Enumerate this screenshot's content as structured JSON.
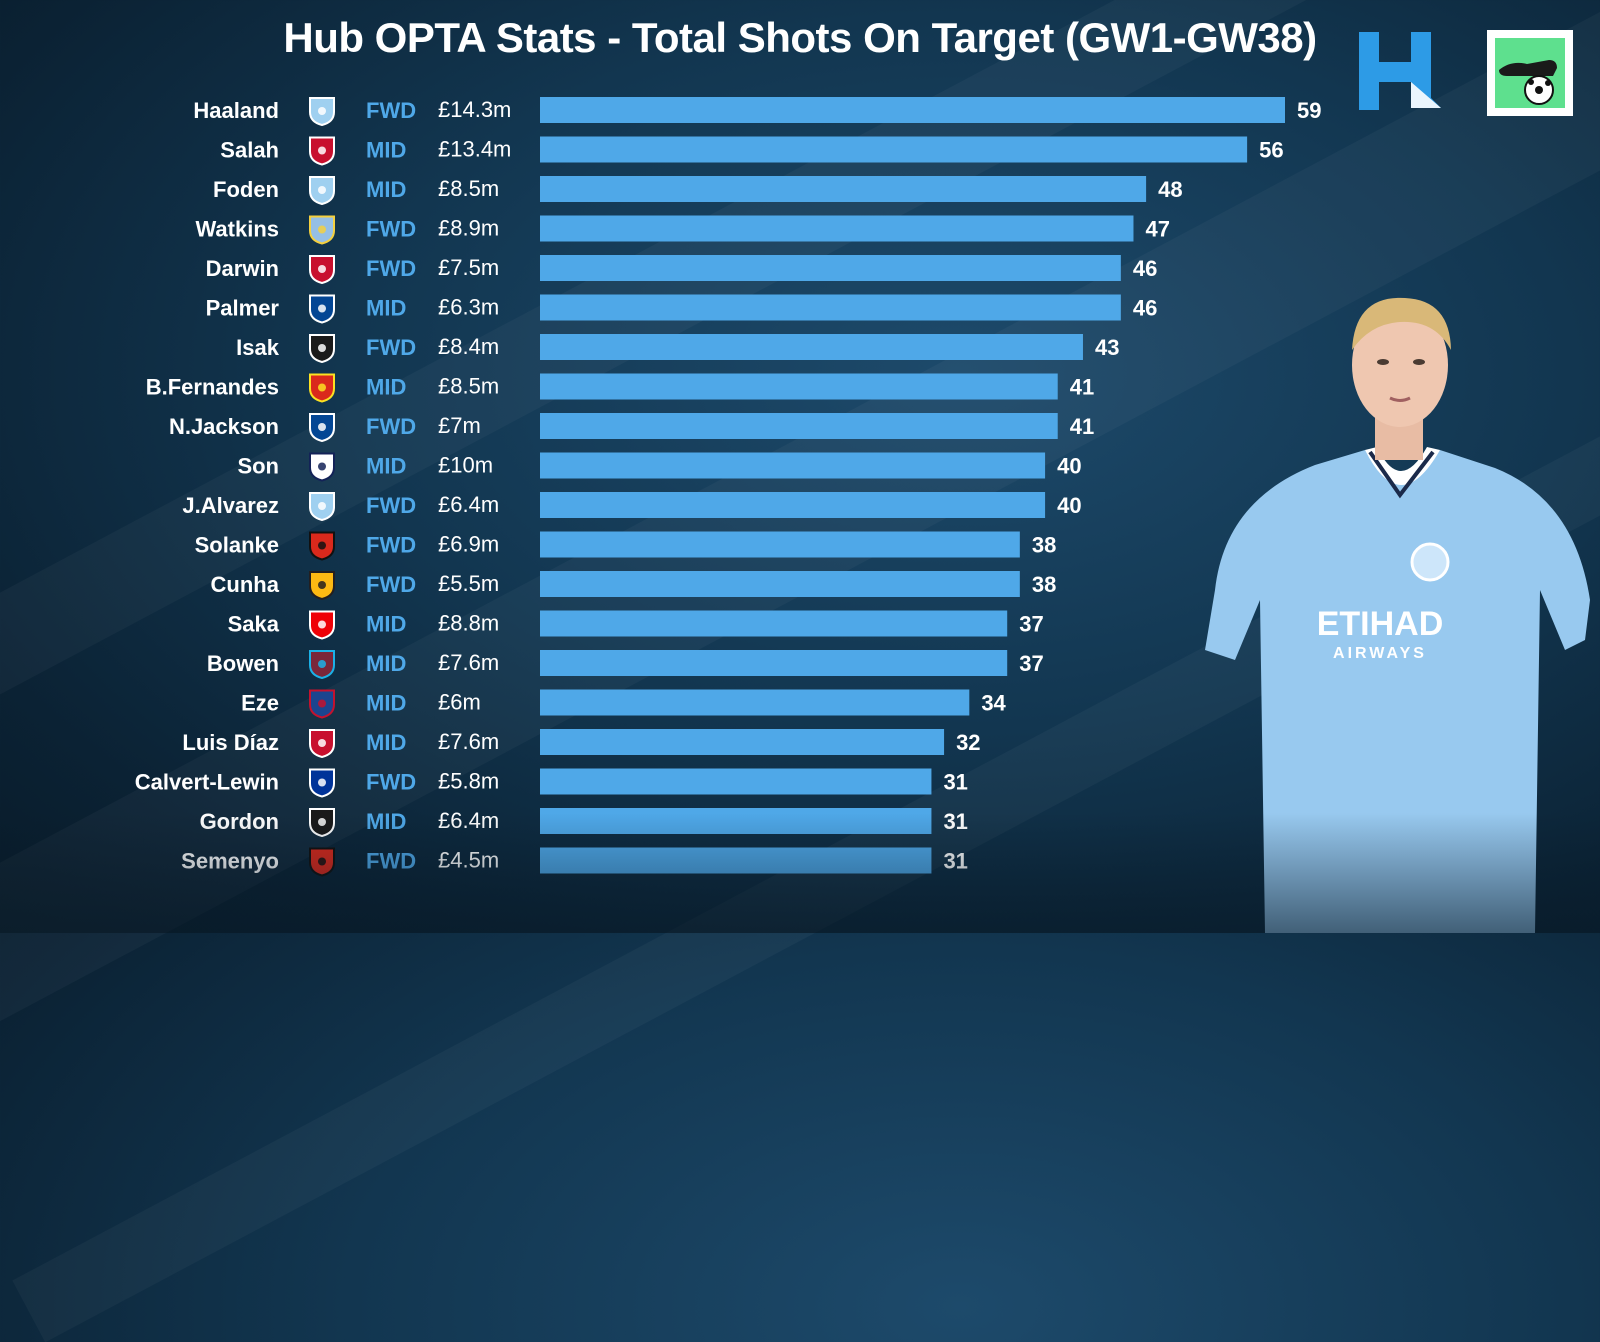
{
  "title": "Hub OPTA Stats - Total Shots On Target (GW1-GW38)",
  "brand": {
    "accent": "#4fa8e8",
    "bar": "#4fa8e8",
    "position_color": "#4fa8e8"
  },
  "player_image": {
    "icon": "player-photo-haaland",
    "shirt_text": "ETIHAD",
    "shirt_subtext": "AIRWAYS"
  },
  "chart_data": {
    "type": "bar",
    "orientation": "horizontal",
    "title": "Hub OPTA Stats - Total Shots On Target (GW1-GW38)",
    "xlim": [
      0,
      59
    ],
    "rows": [
      {
        "name": "Haaland",
        "club": "man-city",
        "position": "FWD",
        "price": "£14.3m",
        "value": 59
      },
      {
        "name": "Salah",
        "club": "liverpool",
        "position": "MID",
        "price": "£13.4m",
        "value": 56
      },
      {
        "name": "Foden",
        "club": "man-city",
        "position": "MID",
        "price": "£8.5m",
        "value": 48
      },
      {
        "name": "Watkins",
        "club": "aston-villa",
        "position": "FWD",
        "price": "£8.9m",
        "value": 47
      },
      {
        "name": "Darwin",
        "club": "liverpool",
        "position": "FWD",
        "price": "£7.5m",
        "value": 46
      },
      {
        "name": "Palmer",
        "club": "chelsea",
        "position": "MID",
        "price": "£6.3m",
        "value": 46
      },
      {
        "name": "Isak",
        "club": "newcastle",
        "position": "FWD",
        "price": "£8.4m",
        "value": 43
      },
      {
        "name": "B.Fernandes",
        "club": "man-utd",
        "position": "MID",
        "price": "£8.5m",
        "value": 41
      },
      {
        "name": "N.Jackson",
        "club": "chelsea",
        "position": "FWD",
        "price": "£7m",
        "value": 41
      },
      {
        "name": "Son",
        "club": "tottenham",
        "position": "MID",
        "price": "£10m",
        "value": 40
      },
      {
        "name": "J.Alvarez",
        "club": "man-city",
        "position": "FWD",
        "price": "£6.4m",
        "value": 40
      },
      {
        "name": "Solanke",
        "club": "bournemouth",
        "position": "FWD",
        "price": "£6.9m",
        "value": 38
      },
      {
        "name": "Cunha",
        "club": "wolves",
        "position": "FWD",
        "price": "£5.5m",
        "value": 38
      },
      {
        "name": "Saka",
        "club": "arsenal",
        "position": "MID",
        "price": "£8.8m",
        "value": 37
      },
      {
        "name": "Bowen",
        "club": "west-ham",
        "position": "MID",
        "price": "£7.6m",
        "value": 37
      },
      {
        "name": "Eze",
        "club": "crystal-palace",
        "position": "MID",
        "price": "£6m",
        "value": 34
      },
      {
        "name": "Luis Díaz",
        "club": "liverpool",
        "position": "MID",
        "price": "£7.6m",
        "value": 32
      },
      {
        "name": "Calvert-Lewin",
        "club": "everton",
        "position": "FWD",
        "price": "£5.8m",
        "value": 31
      },
      {
        "name": "Gordon",
        "club": "newcastle",
        "position": "MID",
        "price": "£6.4m",
        "value": 31
      },
      {
        "name": "Semenyo",
        "club": "bournemouth",
        "position": "FWD",
        "price": "£4.5m",
        "value": 31
      }
    ]
  },
  "club_colors": {
    "man-city": {
      "fill": "#9fd0f0",
      "stroke": "#ffffff"
    },
    "liverpool": {
      "fill": "#c8102e",
      "stroke": "#ffffff"
    },
    "aston-villa": {
      "fill": "#95bfe5",
      "stroke": "#f4d03f"
    },
    "chelsea": {
      "fill": "#034694",
      "stroke": "#ffffff"
    },
    "newcastle": {
      "fill": "#1a1a1a",
      "stroke": "#ffffff"
    },
    "man-utd": {
      "fill": "#da291c",
      "stroke": "#fbe122"
    },
    "tottenham": {
      "fill": "#ffffff",
      "stroke": "#132257"
    },
    "bournemouth": {
      "fill": "#da291c",
      "stroke": "#111111"
    },
    "wolves": {
      "fill": "#fdb913",
      "stroke": "#231f20"
    },
    "arsenal": {
      "fill": "#ef0107",
      "stroke": "#ffffff"
    },
    "west-ham": {
      "fill": "#7a263a",
      "stroke": "#1bb1e7"
    },
    "crystal-palace": {
      "fill": "#1b458f",
      "stroke": "#c4122e"
    },
    "everton": {
      "fill": "#003399",
      "stroke": "#ffffff"
    }
  }
}
